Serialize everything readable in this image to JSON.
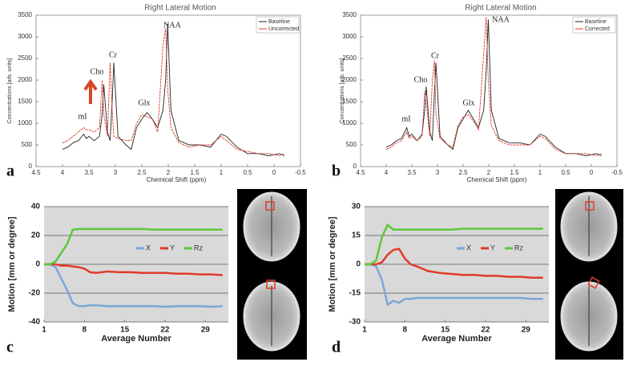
{
  "chart_data": [
    {
      "type": "line",
      "panel_label": "a",
      "title": "Right Lateral Motion",
      "x_label": "Chemical Shift (ppm)",
      "y_label": "Concentrations [arb. units]",
      "annotations": [
        "mI",
        "Cho",
        "Cr",
        "Glx",
        "NAA"
      ],
      "legend": "upper right",
      "style": "spectrum",
      "x": [
        4.0,
        3.9,
        3.8,
        3.7,
        3.6,
        3.55,
        3.5,
        3.4,
        3.3,
        3.25,
        3.22,
        3.15,
        3.1,
        3.06,
        3.03,
        2.95,
        2.8,
        2.7,
        2.6,
        2.5,
        2.4,
        2.3,
        2.2,
        2.1,
        2.05,
        2.01,
        1.95,
        1.8,
        1.6,
        1.4,
        1.2,
        1.0,
        0.9,
        0.7,
        0.5,
        0.3,
        0.1,
        -0.1,
        -0.2
      ],
      "series": [
        {
          "name": "Baseline",
          "color": "#222222",
          "values": [
            400,
            450,
            550,
            600,
            750,
            650,
            700,
            600,
            700,
            1200,
            1900,
            800,
            600,
            1500,
            2400,
            700,
            500,
            400,
            900,
            1100,
            1250,
            1100,
            900,
            1300,
            2000,
            3300,
            1300,
            600,
            500,
            500,
            450,
            750,
            700,
            450,
            300,
            300,
            250,
            300,
            250
          ]
        },
        {
          "name": "Uncorrected",
          "color": "#e03a2a",
          "values": [
            550,
            600,
            700,
            800,
            900,
            850,
            850,
            800,
            900,
            2000,
            1200,
            700,
            2400,
            1300,
            700,
            650,
            600,
            600,
            1000,
            1200,
            1150,
            1100,
            800,
            2800,
            3200,
            1800,
            900,
            550,
            450,
            500,
            500,
            700,
            600,
            400,
            350,
            300,
            300,
            250,
            300
          ]
        }
      ],
      "xlim": [
        4.5,
        -0.5
      ],
      "xticks": [
        4.5,
        4,
        3.5,
        3,
        2.5,
        2,
        1.5,
        1,
        0.5,
        0,
        -0.5
      ],
      "ylim": [
        0,
        3500
      ],
      "yticks": [
        0,
        500,
        1000,
        1500,
        2000,
        2500,
        3000,
        3500
      ],
      "grid": false
    },
    {
      "type": "line",
      "panel_label": "b",
      "title": "Right Lateral Motion",
      "x_label": "Chemical Shift (ppm)",
      "y_label": "Concentrations [arb. units]",
      "annotations": [
        "mI",
        "Cho",
        "Cr",
        "Glx",
        "NAA"
      ],
      "legend": "upper right",
      "style": "spectrum",
      "x": [
        4.0,
        3.9,
        3.8,
        3.7,
        3.6,
        3.55,
        3.5,
        3.4,
        3.3,
        3.25,
        3.22,
        3.15,
        3.1,
        3.06,
        3.03,
        2.95,
        2.8,
        2.7,
        2.6,
        2.5,
        2.4,
        2.3,
        2.2,
        2.1,
        2.05,
        2.01,
        1.95,
        1.8,
        1.6,
        1.4,
        1.2,
        1.0,
        0.9,
        0.7,
        0.5,
        0.3,
        0.1,
        -0.1,
        -0.2
      ],
      "series": [
        {
          "name": "Baseline",
          "color": "#222222",
          "values": [
            450,
            500,
            600,
            650,
            900,
            700,
            750,
            600,
            750,
            1300,
            1850,
            800,
            600,
            1700,
            2400,
            700,
            500,
            400,
            900,
            1100,
            1300,
            1100,
            900,
            1300,
            2200,
            3400,
            1300,
            650,
            550,
            550,
            500,
            750,
            700,
            450,
            300,
            300,
            250,
            300,
            250
          ]
        },
        {
          "name": "Corrected",
          "color": "#e03a2a",
          "values": [
            400,
            450,
            550,
            600,
            800,
            650,
            700,
            600,
            700,
            1750,
            1500,
            700,
            2000,
            2450,
            1200,
            650,
            500,
            450,
            950,
            1150,
            1200,
            1050,
            850,
            2600,
            3450,
            2000,
            950,
            600,
            500,
            500,
            500,
            700,
            650,
            400,
            300,
            300,
            300,
            250,
            300
          ]
        }
      ],
      "xlim": [
        4.5,
        -0.5
      ],
      "xticks": [
        4.5,
        4,
        3.5,
        3,
        2.5,
        2,
        1.5,
        1,
        0.5,
        0,
        -0.5
      ],
      "ylim": [
        0,
        3500
      ],
      "yticks": [
        0,
        500,
        1000,
        1500,
        2000,
        2500,
        3000,
        3500
      ],
      "grid": false
    },
    {
      "type": "line",
      "panel_label": "c",
      "x_label": "Average Number",
      "y_label": "Motion [mm or degree]",
      "legend": "center right",
      "style": "motion",
      "x": [
        1,
        2,
        3,
        4,
        5,
        6,
        7,
        8,
        9,
        10,
        12,
        14,
        16,
        18,
        20,
        22,
        24,
        26,
        28,
        30,
        32
      ],
      "series": [
        {
          "name": "X",
          "color": "#7ba7d9",
          "values": [
            0,
            0,
            -2,
            -10,
            -18,
            -27,
            -29,
            -29,
            -28.5,
            -28.5,
            -29,
            -29,
            -29,
            -29,
            -29,
            -29.5,
            -29,
            -29,
            -29,
            -29.5,
            -29
          ]
        },
        {
          "name": "Y",
          "color": "#e03a2a",
          "values": [
            0,
            0,
            0,
            -1,
            -1,
            -1.5,
            -2,
            -3,
            -5.5,
            -6,
            -5,
            -5.5,
            -5.5,
            -6,
            -6,
            -6,
            -6.5,
            -6.5,
            -7,
            -7,
            -7.5
          ]
        },
        {
          "name": "Rz",
          "color": "#5cc83a",
          "values": [
            0,
            0,
            2,
            8,
            14,
            24,
            24.5,
            24.5,
            24.5,
            24.5,
            24.5,
            24.5,
            24.5,
            24.5,
            24,
            24,
            24,
            24,
            24,
            24,
            24
          ]
        }
      ],
      "xlim": [
        1,
        33
      ],
      "xticks": [
        1,
        8,
        15,
        22,
        29
      ],
      "ylim": [
        -40,
        40
      ],
      "yticks": [
        -40,
        -20,
        0,
        20,
        40
      ],
      "grid": true
    },
    {
      "type": "line",
      "panel_label": "d",
      "x_label": "Average Number",
      "y_label": "Motion [mm or degree]",
      "legend": "center right",
      "style": "motion",
      "x": [
        1,
        2,
        3,
        4,
        5,
        6,
        7,
        8,
        9,
        10,
        12,
        14,
        16,
        18,
        20,
        22,
        24,
        26,
        28,
        30,
        32
      ],
      "series": [
        {
          "name": "X",
          "color": "#7ba7d9",
          "values": [
            0,
            0,
            -1,
            -8,
            -21,
            -19,
            -20,
            -18,
            -18,
            -17.5,
            -17.5,
            -17.5,
            -17.5,
            -17.5,
            -17.5,
            -17.5,
            -17.5,
            -17.5,
            -17.5,
            -18,
            -18
          ]
        },
        {
          "name": "Y",
          "color": "#e03a2a",
          "values": [
            0,
            0,
            0,
            1,
            5,
            7.5,
            8,
            3,
            0,
            -1,
            -3.5,
            -4.5,
            -5,
            -5.5,
            -5.5,
            -6,
            -6,
            -6.5,
            -6.5,
            -7,
            -7
          ]
        },
        {
          "name": "Rz",
          "color": "#5cc83a",
          "values": [
            0,
            0,
            2,
            14,
            20.5,
            18,
            18,
            18,
            18,
            18,
            18,
            18,
            18,
            18.5,
            18.5,
            18.5,
            18.5,
            18.5,
            18.5,
            18.5,
            18.5
          ]
        }
      ],
      "xlim": [
        1,
        33
      ],
      "xticks": [
        1,
        8,
        15,
        22,
        29
      ],
      "ylim": [
        -30,
        30
      ],
      "yticks": [
        -30,
        -15,
        0,
        15,
        30
      ],
      "grid": true
    }
  ]
}
